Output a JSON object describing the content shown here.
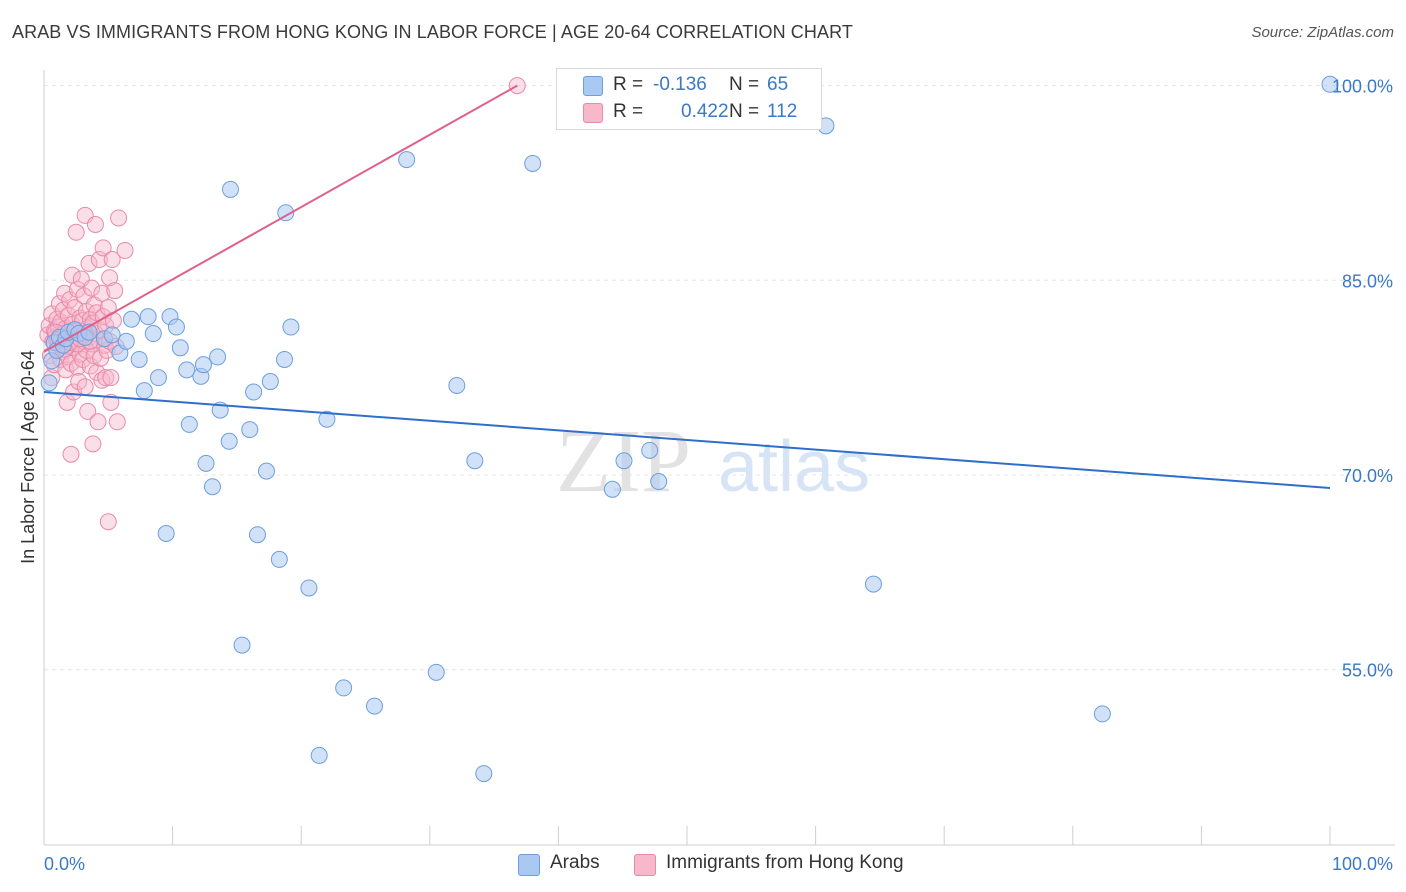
{
  "title": "ARAB VS IMMIGRANTS FROM HONG KONG IN LABOR FORCE | AGE 20-64 CORRELATION CHART",
  "source": "Source: ZipAtlas.com",
  "colors": {
    "blue_fill": "#a9c8f2",
    "blue_stroke": "#6c9fdc",
    "blue_line": "#2e6fcc",
    "pink_fill": "#f7b8cb",
    "pink_stroke": "#e98aa8",
    "pink_line": "#e0608a",
    "axis_text": "#3a78c9",
    "grid": "#e4e4e4"
  },
  "legend": {
    "rows": [
      {
        "r_label": "R =",
        "r_value": "-0.136",
        "n_label": "N =",
        "n_value": "65"
      },
      {
        "r_label": "R =",
        "r_value": "0.422",
        "n_label": "N =",
        "n_value": "112"
      }
    ]
  },
  "bottom_legend": {
    "series1": "Arabs",
    "series2": "Immigrants from Hong Kong"
  },
  "watermark": {
    "zip": "ZIP",
    "atlas": "atlas"
  },
  "chart_data": {
    "type": "scatter",
    "ylabel": "In Labor Force | Age 20-64",
    "xlim": [
      0,
      100
    ],
    "ylim": [
      41.5,
      101.2
    ],
    "x_tick_labels": [
      {
        "value": 0,
        "label": "0.0%"
      },
      {
        "value": 100,
        "label": "100.0%"
      }
    ],
    "y_tick_labels": [
      {
        "value": 100,
        "label": "100.0%"
      },
      {
        "value": 85,
        "label": "85.0%"
      },
      {
        "value": 70,
        "label": "70.0%"
      },
      {
        "value": 55,
        "label": "55.0%"
      }
    ],
    "grid": true,
    "series": [
      {
        "name": "Arabs",
        "color": "blue",
        "trend": {
          "x": [
            0,
            100
          ],
          "y": [
            76.4,
            69.0
          ]
        },
        "points": [
          [
            0.4,
            77.1
          ],
          [
            0.6,
            78.8
          ],
          [
            0.8,
            80.2
          ],
          [
            1.0,
            79.6
          ],
          [
            1.2,
            80.6
          ],
          [
            1.5,
            80.0
          ],
          [
            1.7,
            80.5
          ],
          [
            1.9,
            81.0
          ],
          [
            2.4,
            81.2
          ],
          [
            2.7,
            80.9
          ],
          [
            3.2,
            80.6
          ],
          [
            3.5,
            81.0
          ],
          [
            4.7,
            80.5
          ],
          [
            5.3,
            80.8
          ],
          [
            5.9,
            79.4
          ],
          [
            6.4,
            80.3
          ],
          [
            6.8,
            82.0
          ],
          [
            7.4,
            78.9
          ],
          [
            7.8,
            76.5
          ],
          [
            8.1,
            82.2
          ],
          [
            8.5,
            80.9
          ],
          [
            8.9,
            77.5
          ],
          [
            9.5,
            65.5
          ],
          [
            9.8,
            82.2
          ],
          [
            10.3,
            81.4
          ],
          [
            10.6,
            79.8
          ],
          [
            11.1,
            78.1
          ],
          [
            11.3,
            73.9
          ],
          [
            12.2,
            77.6
          ],
          [
            12.4,
            78.5
          ],
          [
            12.6,
            70.9
          ],
          [
            13.1,
            69.1
          ],
          [
            13.5,
            79.1
          ],
          [
            13.7,
            75.0
          ],
          [
            14.4,
            72.6
          ],
          [
            14.5,
            92.0
          ],
          [
            15.4,
            56.9
          ],
          [
            16.0,
            73.5
          ],
          [
            16.3,
            76.4
          ],
          [
            16.6,
            65.4
          ],
          [
            17.3,
            70.3
          ],
          [
            17.6,
            77.2
          ],
          [
            18.3,
            63.5
          ],
          [
            18.7,
            78.9
          ],
          [
            18.8,
            90.2
          ],
          [
            19.2,
            81.4
          ],
          [
            20.6,
            61.3
          ],
          [
            21.4,
            48.4
          ],
          [
            22.0,
            74.3
          ],
          [
            23.3,
            53.6
          ],
          [
            25.7,
            52.2
          ],
          [
            28.2,
            94.3
          ],
          [
            30.5,
            54.8
          ],
          [
            32.1,
            76.9
          ],
          [
            33.5,
            71.1
          ],
          [
            34.2,
            47.0
          ],
          [
            38.0,
            94.0
          ],
          [
            44.2,
            68.9
          ],
          [
            45.1,
            71.1
          ],
          [
            47.1,
            71.9
          ],
          [
            47.8,
            69.5
          ],
          [
            60.8,
            96.9
          ],
          [
            64.5,
            61.6
          ],
          [
            82.3,
            51.6
          ],
          [
            100.0,
            100.1
          ]
        ]
      },
      {
        "name": "Immigrants from Hong Kong",
        "color": "pink",
        "trend": {
          "x": [
            0,
            36.8
          ],
          "y": [
            79.5,
            100.0
          ]
        },
        "points": [
          [
            0.3,
            80.8
          ],
          [
            0.4,
            81.5
          ],
          [
            0.5,
            79.2
          ],
          [
            0.6,
            82.4
          ],
          [
            0.6,
            77.5
          ],
          [
            0.7,
            80.3
          ],
          [
            0.8,
            81.1
          ],
          [
            0.8,
            78.5
          ],
          [
            0.9,
            80.6
          ],
          [
            1.0,
            82.0
          ],
          [
            1.0,
            79.7
          ],
          [
            1.1,
            81.4
          ],
          [
            1.2,
            83.2
          ],
          [
            1.2,
            80.1
          ],
          [
            1.3,
            78.9
          ],
          [
            1.3,
            81.8
          ],
          [
            1.4,
            80.4
          ],
          [
            1.5,
            79.5
          ],
          [
            1.5,
            82.7
          ],
          [
            1.6,
            84.0
          ],
          [
            1.6,
            80.9
          ],
          [
            1.7,
            78.1
          ],
          [
            1.7,
            81.3
          ],
          [
            1.8,
            75.6
          ],
          [
            1.8,
            80.0
          ],
          [
            1.9,
            82.3
          ],
          [
            1.9,
            79.1
          ],
          [
            2.0,
            83.5
          ],
          [
            2.0,
            80.7
          ],
          [
            2.1,
            71.6
          ],
          [
            2.1,
            78.6
          ],
          [
            2.2,
            81.6
          ],
          [
            2.2,
            85.4
          ],
          [
            2.3,
            80.2
          ],
          [
            2.3,
            76.4
          ],
          [
            2.4,
            82.9
          ],
          [
            2.4,
            79.8
          ],
          [
            2.5,
            88.7
          ],
          [
            2.5,
            81.0
          ],
          [
            2.6,
            78.3
          ],
          [
            2.6,
            84.3
          ],
          [
            2.7,
            80.5
          ],
          [
            2.7,
            77.2
          ],
          [
            2.8,
            82.1
          ],
          [
            2.8,
            79.3
          ],
          [
            2.9,
            85.1
          ],
          [
            2.9,
            80.8
          ],
          [
            3.0,
            81.9
          ],
          [
            3.0,
            78.9
          ],
          [
            3.1,
            83.8
          ],
          [
            3.1,
            80.3
          ],
          [
            3.2,
            90.0
          ],
          [
            3.2,
            76.8
          ],
          [
            3.3,
            82.6
          ],
          [
            3.3,
            79.6
          ],
          [
            3.4,
            81.3
          ],
          [
            3.4,
            74.9
          ],
          [
            3.5,
            86.3
          ],
          [
            3.5,
            80.6
          ],
          [
            3.6,
            82.0
          ],
          [
            3.6,
            78.4
          ],
          [
            3.7,
            84.4
          ],
          [
            3.7,
            80.1
          ],
          [
            3.8,
            81.7
          ],
          [
            3.8,
            72.4
          ],
          [
            3.9,
            79.2
          ],
          [
            3.9,
            83.1
          ],
          [
            4.0,
            89.3
          ],
          [
            4.0,
            80.9
          ],
          [
            4.1,
            77.9
          ],
          [
            4.1,
            82.5
          ],
          [
            4.2,
            80.4
          ],
          [
            4.2,
            74.1
          ],
          [
            4.3,
            86.6
          ],
          [
            4.3,
            81.2
          ],
          [
            4.4,
            79.0
          ],
          [
            4.5,
            84.0
          ],
          [
            4.5,
            77.3
          ],
          [
            4.6,
            87.5
          ],
          [
            4.6,
            82.2
          ],
          [
            4.7,
            80.0
          ],
          [
            4.8,
            77.5
          ],
          [
            4.8,
            81.5
          ],
          [
            4.9,
            79.6
          ],
          [
            5.0,
            66.4
          ],
          [
            5.0,
            82.9
          ],
          [
            5.1,
            85.2
          ],
          [
            5.1,
            80.3
          ],
          [
            5.2,
            77.5
          ],
          [
            5.2,
            75.6
          ],
          [
            5.3,
            86.6
          ],
          [
            5.4,
            81.9
          ],
          [
            5.5,
            84.2
          ],
          [
            5.6,
            79.9
          ],
          [
            5.7,
            74.1
          ],
          [
            5.8,
            89.8
          ],
          [
            6.3,
            87.3
          ],
          [
            36.8,
            100.0
          ],
          [
            1.0,
            80.3
          ],
          [
            1.4,
            80.6
          ],
          [
            1.8,
            79.9
          ],
          [
            2.2,
            80.5
          ],
          [
            2.6,
            80.1
          ],
          [
            3.0,
            80.7
          ],
          [
            0.9,
            81.0
          ],
          [
            1.1,
            80.4
          ],
          [
            1.6,
            79.7
          ],
          [
            2.0,
            80.2
          ],
          [
            2.4,
            81.1
          ],
          [
            2.8,
            80.5
          ],
          [
            3.2,
            80.9
          ],
          [
            3.6,
            80.3
          ]
        ]
      }
    ]
  }
}
